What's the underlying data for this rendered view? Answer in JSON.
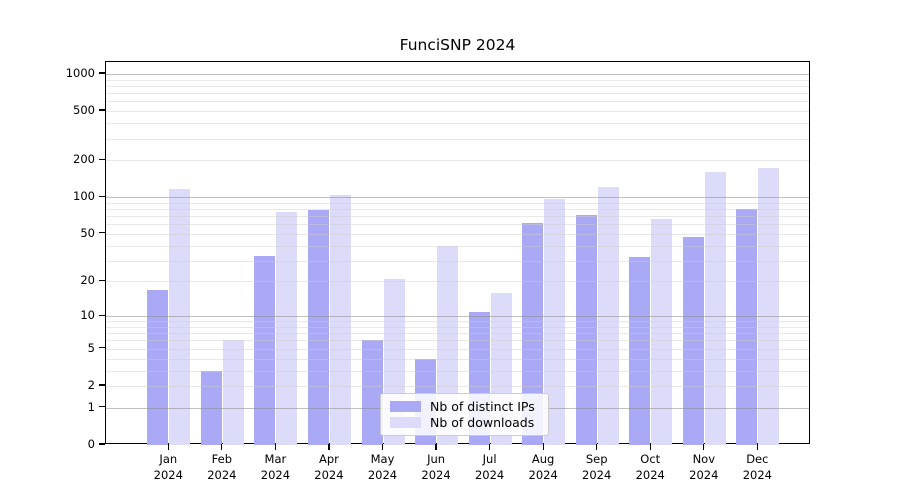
{
  "title": "FunciSNP 2024",
  "chart_data": {
    "type": "bar",
    "title": "FunciSNP 2024",
    "categories": [
      "Jan",
      "Feb",
      "Mar",
      "Apr",
      "May",
      "Jun",
      "Jul",
      "Aug",
      "Sep",
      "Oct",
      "Nov",
      "Dec"
    ],
    "year_label": "2024",
    "series": [
      {
        "name": "Nb of distinct IPs",
        "color": "#a9a9f5",
        "values": [
          17,
          3,
          33,
          79,
          6,
          4,
          11,
          61,
          71,
          32,
          47,
          80
        ]
      },
      {
        "name": "Nb of downloads",
        "color": "#dcdcfa",
        "values": [
          117,
          6,
          75,
          104,
          21,
          40,
          16,
          96,
          120,
          66,
          160,
          172
        ]
      }
    ],
    "y_ticks": [
      0,
      1,
      2,
      5,
      10,
      20,
      50,
      100,
      200,
      500,
      1000
    ],
    "y_scale": "log1p",
    "ylim": [
      0,
      1250
    ],
    "xlabel": "",
    "ylabel": "",
    "grid": true,
    "legend_position": "lower-center",
    "colors": {
      "axis": "#000000",
      "major_grid": "#8c8c8c",
      "minor_grid": "#dedede",
      "background": "#ffffff"
    }
  }
}
